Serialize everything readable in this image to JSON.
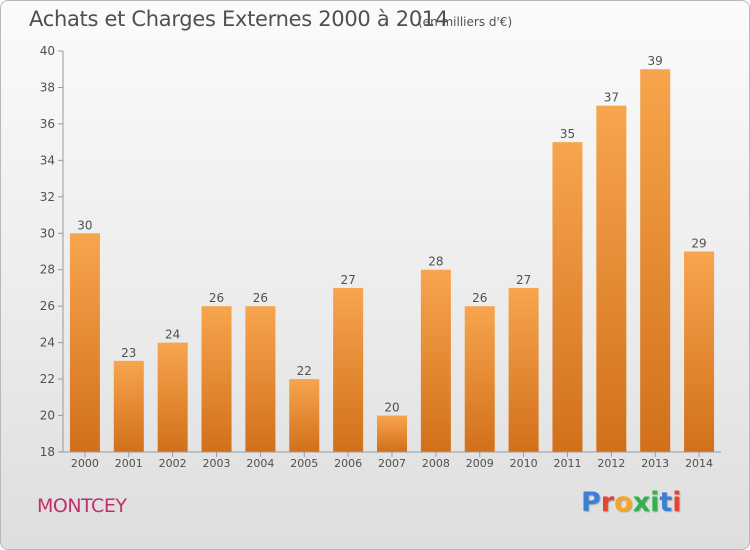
{
  "header": {
    "title": "Achats et Charges Externes 2000 à 2014",
    "subtitle": "(en milliers d'€)"
  },
  "footer": {
    "commune": "MONTCEY",
    "brand": "Proxiti",
    "brand_colors": [
      "#3b7fd6",
      "#e2462f",
      "#f5a623",
      "#2fb04a",
      "#2fb04a",
      "#3b7fd6",
      "#e2462f"
    ]
  },
  "colors": {
    "bar_top": "#f7a54e",
    "bar_bottom": "#d2701a",
    "text": "#505050",
    "accent": "#c0306a"
  },
  "chart_data": {
    "type": "bar",
    "title": "Achats et Charges Externes 2000 à 2014",
    "subtitle": "(en milliers d'€)",
    "xlabel": "",
    "ylabel": "",
    "categories": [
      "2000",
      "2001",
      "2002",
      "2003",
      "2004",
      "2005",
      "2006",
      "2007",
      "2008",
      "2009",
      "2010",
      "2011",
      "2012",
      "2013",
      "2014"
    ],
    "values": [
      30,
      23,
      24,
      26,
      26,
      22,
      27,
      20,
      28,
      26,
      27,
      35,
      37,
      39,
      29
    ],
    "ylim": [
      18,
      40
    ],
    "yticks": [
      18,
      20,
      22,
      24,
      26,
      28,
      30,
      32,
      34,
      36,
      38,
      40
    ],
    "grid": false,
    "legend": "none"
  }
}
